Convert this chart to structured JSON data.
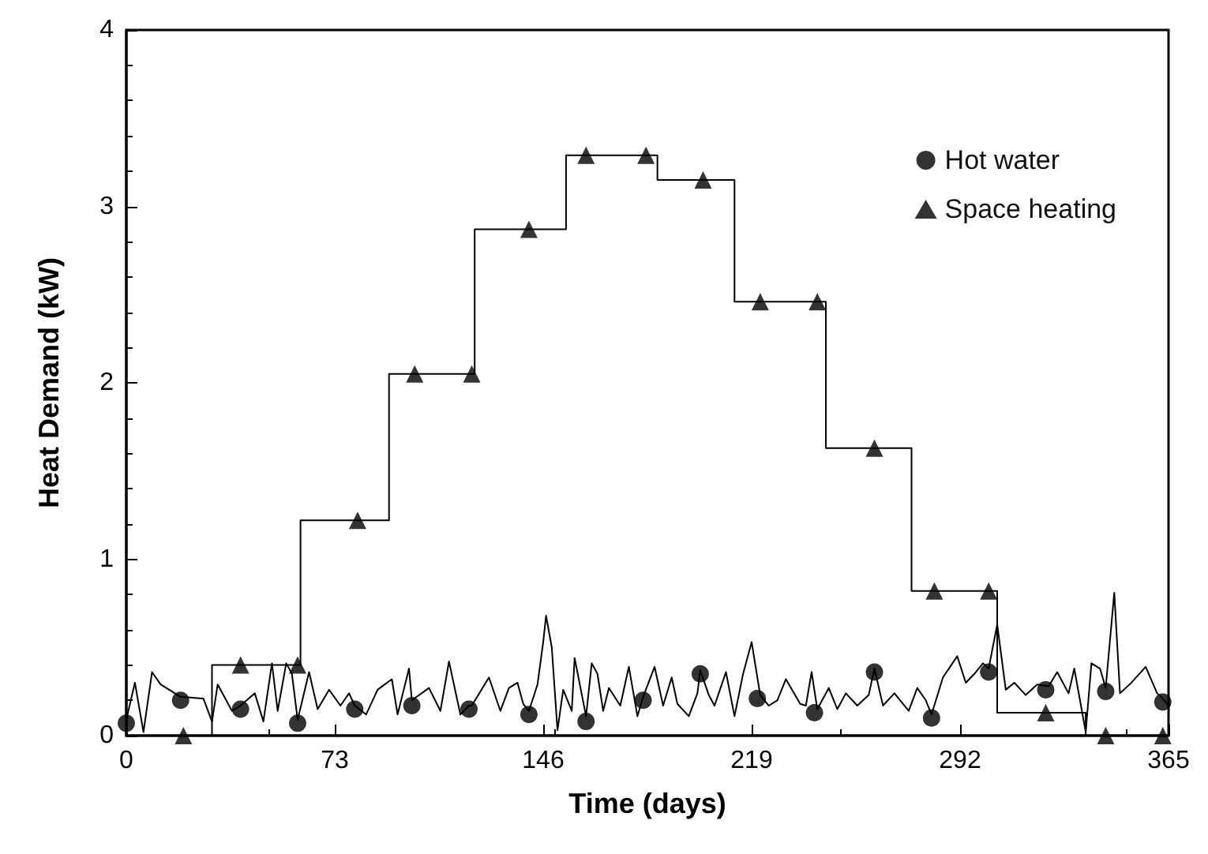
{
  "chart_data": {
    "type": "line",
    "xlabel": "Time (days)",
    "ylabel": "Heat Demand (kW)",
    "xlim": [
      0,
      365
    ],
    "xticks": [
      0,
      73,
      146,
      219,
      292,
      365
    ],
    "ylim": [
      0,
      4
    ],
    "yticks": [
      0,
      1,
      2,
      3,
      4
    ],
    "grid": false,
    "legend": "top right",
    "series": [
      {
        "type": "line",
        "color": "#000000",
        "marker": "none",
        "x": [
          0,
          3,
          6,
          9,
          12,
          19,
          27,
          30,
          32,
          37,
          40,
          45,
          48,
          51,
          53,
          56,
          58,
          60,
          64,
          67,
          71,
          75,
          78,
          80,
          84,
          88,
          93,
          95,
          99,
          100,
          106,
          110,
          113,
          117,
          120,
          121,
          127,
          131,
          134,
          137,
          139,
          141,
          144,
          146,
          147,
          149,
          151,
          153,
          156,
          157,
          161,
          163,
          165,
          167,
          169,
          173,
          176,
          179,
          181,
          185,
          188,
          191,
          193,
          197,
          200,
          201,
          204,
          206,
          210,
          213,
          216,
          219,
          222,
          225,
          228,
          231,
          236,
          238,
          240,
          242,
          246,
          249,
          252,
          256,
          260,
          262,
          265,
          269,
          274,
          277,
          280,
          282,
          286,
          291,
          294,
          297,
          300,
          302,
          305,
          308,
          311,
          315,
          319,
          323,
          326,
          330,
          332,
          336,
          338,
          341,
          343,
          346,
          348,
          352,
          357,
          361,
          363,
          365
        ],
        "values": [
          0.09,
          0.3,
          0.02,
          0.36,
          0.29,
          0.22,
          0.21,
          0.08,
          0.29,
          0.14,
          0.17,
          0.24,
          0.08,
          0.41,
          0.14,
          0.41,
          0.35,
          0.09,
          0.36,
          0.15,
          0.26,
          0.17,
          0.24,
          0.17,
          0.12,
          0.26,
          0.32,
          0.12,
          0.38,
          0.2,
          0.27,
          0.14,
          0.42,
          0.12,
          0.17,
          0.17,
          0.33,
          0.14,
          0.27,
          0.3,
          0.18,
          0.14,
          0.29,
          0.53,
          0.68,
          0.5,
          0.03,
          0.26,
          0.14,
          0.44,
          0.11,
          0.41,
          0.35,
          0.14,
          0.27,
          0.17,
          0.39,
          0.11,
          0.22,
          0.39,
          0.17,
          0.33,
          0.18,
          0.11,
          0.24,
          0.37,
          0.23,
          0.17,
          0.36,
          0.11,
          0.35,
          0.53,
          0.23,
          0.17,
          0.2,
          0.32,
          0.18,
          0.17,
          0.36,
          0.15,
          0.27,
          0.15,
          0.24,
          0.17,
          0.23,
          0.38,
          0.17,
          0.24,
          0.14,
          0.27,
          0.2,
          0.12,
          0.33,
          0.45,
          0.3,
          0.35,
          0.41,
          0.38,
          0.63,
          0.26,
          0.3,
          0.23,
          0.29,
          0.28,
          0.36,
          0.24,
          0.38,
          0.02,
          0.41,
          0.38,
          0.27,
          0.81,
          0.24,
          0.3,
          0.39,
          0.24,
          0.21,
          0.17
        ]
      },
      {
        "type": "scatter",
        "name": "Hot water",
        "color": "#000000",
        "marker": "circle",
        "x": [
          0,
          19,
          40,
          60,
          80,
          100,
          120,
          141,
          161,
          181,
          201,
          221,
          241,
          262,
          282,
          302,
          322,
          343,
          363
        ],
        "values": [
          0.07,
          0.2,
          0.15,
          0.07,
          0.15,
          0.17,
          0.15,
          0.12,
          0.08,
          0.2,
          0.35,
          0.21,
          0.13,
          0.36,
          0.1,
          0.36,
          0.26,
          0.25,
          0.19
        ]
      },
      {
        "type": "step",
        "color": "#000000",
        "marker": "none",
        "x": [
          0,
          30,
          61,
          92,
          122,
          154,
          186,
          213,
          245,
          275,
          305,
          336,
          365
        ],
        "values": [
          0,
          0.4,
          1.22,
          2.05,
          2.87,
          3.29,
          3.15,
          2.46,
          1.63,
          0.82,
          0.13,
          0,
          0
        ]
      },
      {
        "type": "scatter",
        "name": "Space heating",
        "color": "#000000",
        "marker": "triangle",
        "x": [
          20,
          40,
          60,
          81,
          101,
          121,
          141,
          161,
          182,
          202,
          222,
          242,
          262,
          283,
          302,
          322,
          343,
          363
        ],
        "values": [
          0,
          0.4,
          0.4,
          1.22,
          2.05,
          2.05,
          2.87,
          3.29,
          3.29,
          3.15,
          2.46,
          2.46,
          1.63,
          0.82,
          0.82,
          0.13,
          0,
          0
        ]
      }
    ]
  }
}
